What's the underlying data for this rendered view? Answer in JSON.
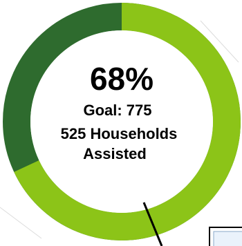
{
  "chart_data": {
    "type": "pie",
    "subtype": "donut-progress",
    "percent": 68,
    "goal_value": 775,
    "achieved_value": 525,
    "labels": {
      "percent_text": "68%",
      "goal_text": "Goal: 775",
      "count_text": "525 Households",
      "count_text_line2": "Assisted"
    },
    "colors": {
      "track": "#2e6b2e",
      "progress": "#8cc418",
      "center_fill": "#ffffff",
      "callout_line": "#000000"
    }
  }
}
